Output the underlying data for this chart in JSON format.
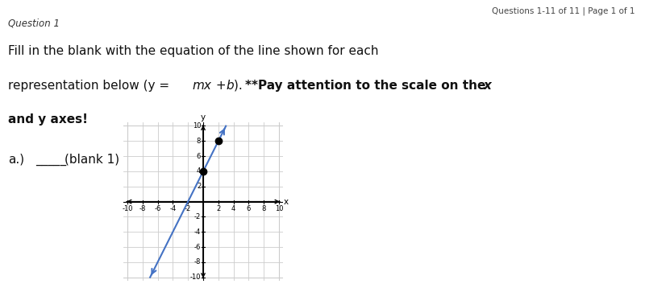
{
  "title_top_right": "Questions 1-11 of 11 | Page 1 of 1",
  "question_label": "Question 1",
  "question_text_line1": "Fill in the blank with the equation of the line shown for each",
  "question_text_line2_normal": "representation below (y = mx + b). ",
  "question_text_line2_bold": "**Pay attention to the scale on the x",
  "question_text_line3": "and y axes!",
  "part_label": "a.)",
  "blank_text": "_____(blank 1)",
  "line_slope": 2,
  "line_intercept": 4,
  "x_range": [
    -10,
    10
  ],
  "y_range": [
    -10,
    10
  ],
  "marked_points": [
    [
      0,
      4
    ],
    [
      2,
      8
    ]
  ],
  "line_color": "#4472c4",
  "point_color": "#000000",
  "axis_color": "#000000",
  "grid_color": "#cccccc",
  "background_color": "#ffffff",
  "green_bar_color": "#90c090",
  "tick_step": 2,
  "fig_width": 8.0,
  "fig_height": 3.53
}
